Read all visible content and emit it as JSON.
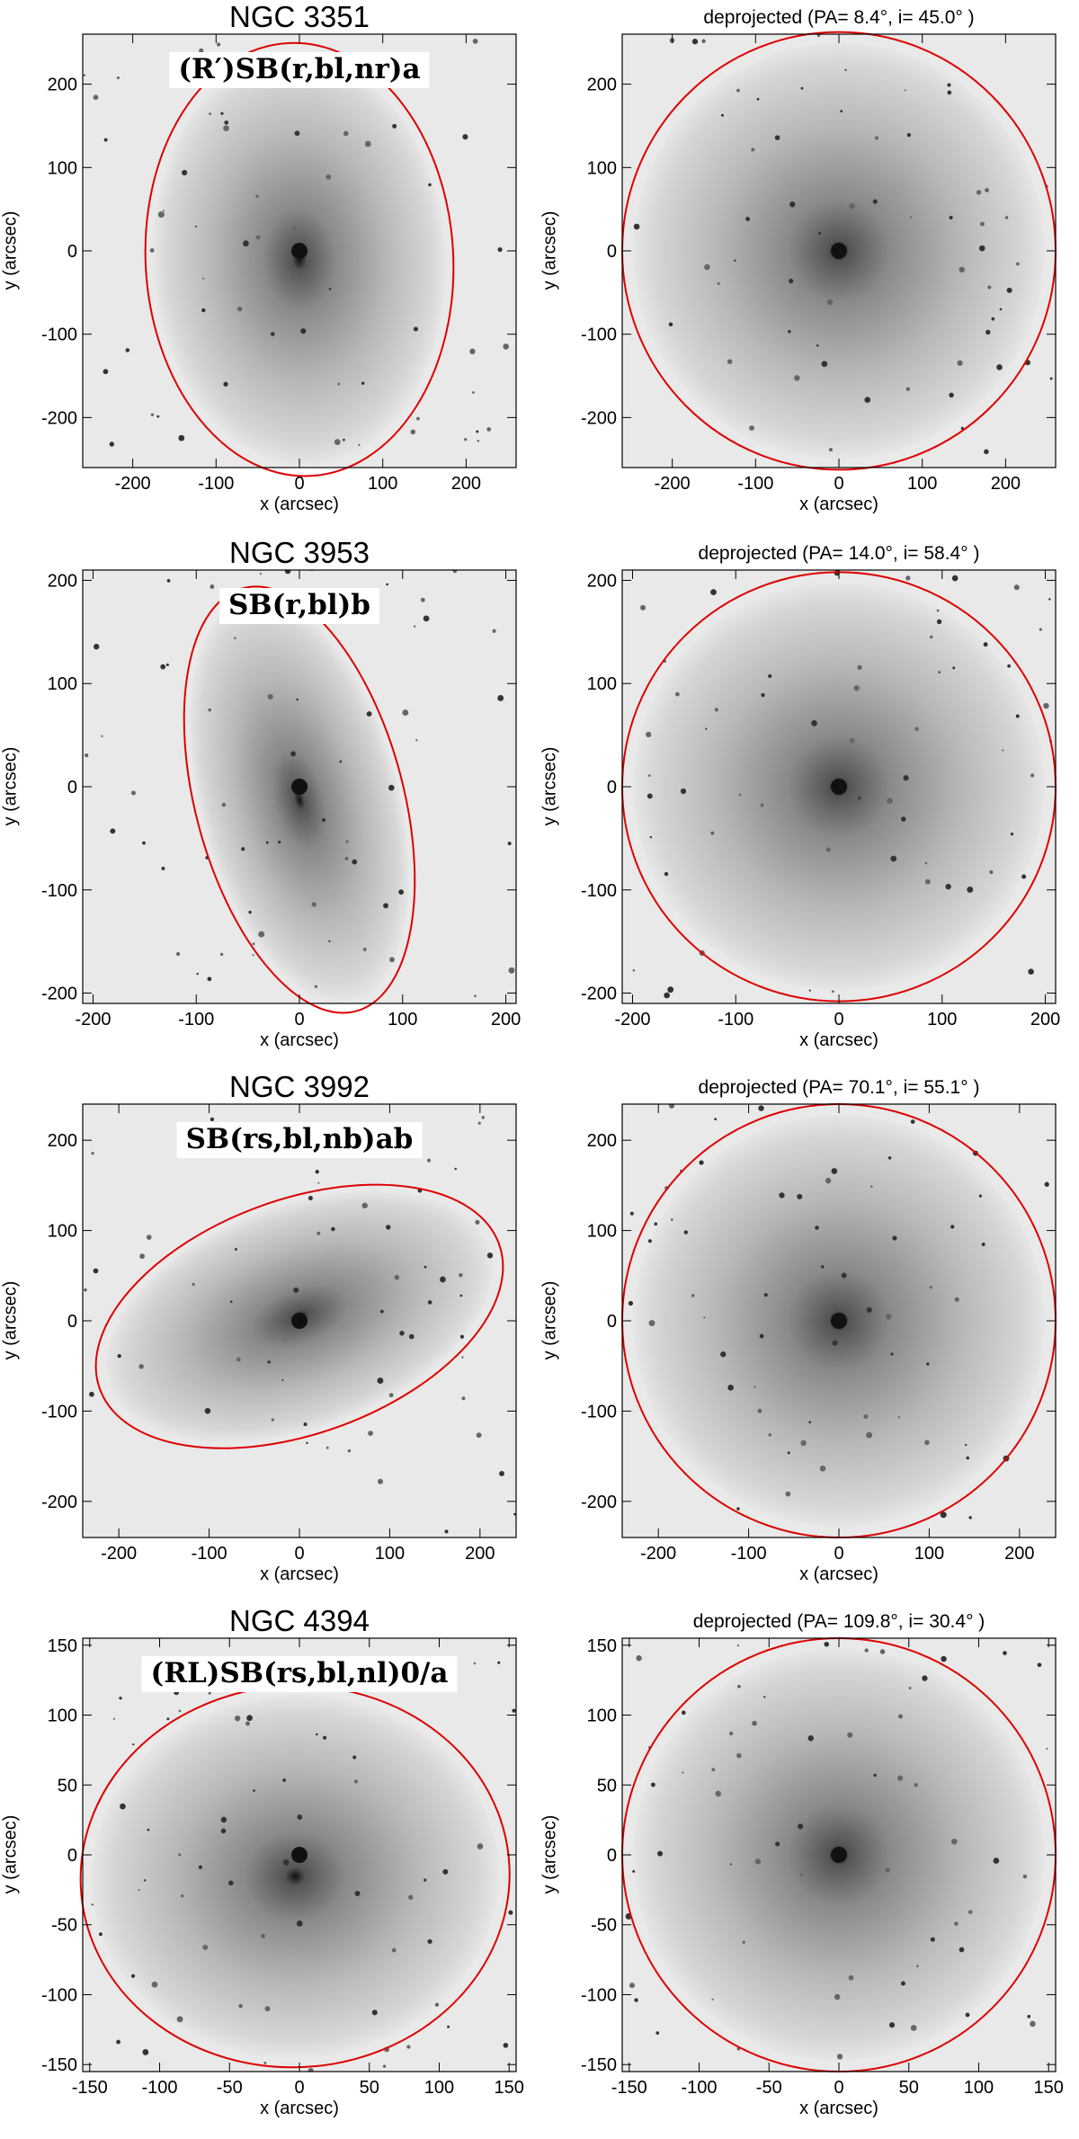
{
  "figure": {
    "ellipse_color": "#dd0000",
    "panels": [
      {
        "galaxy": "NGC 3351",
        "morphology": "(R′)SB(r,bl,nr)a",
        "left": {
          "title": "NGC 3351",
          "xlabel": "x (arcsec)",
          "ylabel": "y (arcsec)",
          "xticks": [
            "-200",
            "-100",
            "0",
            "100",
            "200"
          ],
          "yticks": [
            "200",
            "100",
            "0",
            "-100",
            "-200"
          ],
          "range": 260
        },
        "right": {
          "title": "deprojected  (PA= 8.4°, i= 45.0° )",
          "xlabel": "x (arcsec)",
          "ylabel": "y (arcsec)",
          "xticks": [
            "-200",
            "-100",
            "0",
            "100",
            "200"
          ],
          "yticks": [
            "200",
            "100",
            "0",
            "-100",
            "-200"
          ],
          "range": 260
        }
      },
      {
        "galaxy": "NGC 3953",
        "morphology": "SB(r,bl)b",
        "left": {
          "title": "NGC 3953",
          "xlabel": "x (arcsec)",
          "ylabel": "y (arcsec)",
          "xticks": [
            "-200",
            "-100",
            "0",
            "100",
            "200"
          ],
          "yticks": [
            "200",
            "100",
            "0",
            "-100",
            "-200"
          ],
          "range": 210
        },
        "right": {
          "title": "deprojected  (PA= 14.0°, i= 58.4° )",
          "xlabel": "x (arcsec)",
          "ylabel": "y (arcsec)",
          "xticks": [
            "-200",
            "-100",
            "0",
            "100",
            "200"
          ],
          "yticks": [
            "200",
            "100",
            "0",
            "-100",
            "-200"
          ],
          "range": 210
        }
      },
      {
        "galaxy": "NGC 3992",
        "morphology": "SB(rs,bl,nb)ab",
        "left": {
          "title": "NGC 3992",
          "xlabel": "x (arcsec)",
          "ylabel": "y (arcsec)",
          "xticks": [
            "-200",
            "-100",
            "0",
            "100",
            "200"
          ],
          "yticks": [
            "200",
            "100",
            "0",
            "-100",
            "-200"
          ],
          "range": 240
        },
        "right": {
          "title": "deprojected  (PA= 70.1°, i= 55.1° )",
          "xlabel": "x (arcsec)",
          "ylabel": "y (arcsec)",
          "xticks": [
            "-200",
            "-100",
            "0",
            "100",
            "200"
          ],
          "yticks": [
            "200",
            "100",
            "0",
            "-100",
            "-200"
          ],
          "range": 240
        }
      },
      {
        "galaxy": "NGC 4394",
        "morphology": "(RL)SB(rs,bl,nl)0/a",
        "left": {
          "title": "NGC 4394",
          "xlabel": "x (arcsec)",
          "ylabel": "y (arcsec)",
          "xticks": [
            "-150",
            "-100",
            "-50",
            "0",
            "50",
            "100",
            "150"
          ],
          "yticks": [
            "150",
            "100",
            "50",
            "0",
            "-50",
            "-100",
            "-150"
          ],
          "range": 155
        },
        "right": {
          "title": "deprojected  (PA= 109.8°, i= 30.4° )",
          "xlabel": "x (arcsec)",
          "ylabel": "y (arcsec)",
          "xticks": [
            "-150",
            "-100",
            "-50",
            "0",
            "50",
            "100",
            "150"
          ],
          "yticks": [
            "150",
            "100",
            "50",
            "0",
            "-50",
            "-100",
            "-150"
          ],
          "range": 155
        }
      }
    ]
  }
}
